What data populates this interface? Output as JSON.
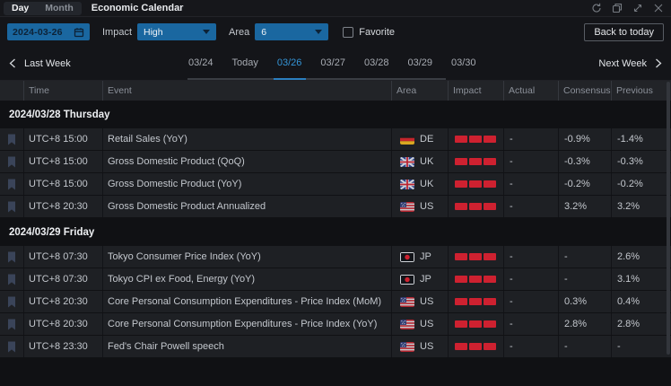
{
  "window": {
    "tabs": [
      {
        "label": "Day",
        "active": true
      },
      {
        "label": "Month",
        "active": false
      }
    ],
    "title": "Economic Calendar",
    "controls": [
      "refresh",
      "popout",
      "expand",
      "close"
    ]
  },
  "filters": {
    "date_value": "2024-03-26",
    "impact_label": "Impact",
    "impact_value": "High",
    "area_label": "Area",
    "area_value": "6",
    "favorite_label": "Favorite",
    "favorite_checked": false,
    "back_to_today_label": "Back to today"
  },
  "week_nav": {
    "prev_label": "Last Week",
    "next_label": "Next Week",
    "days": [
      {
        "label": "03/24",
        "active": false
      },
      {
        "label": "Today",
        "active": false
      },
      {
        "label": "03/26",
        "active": true
      },
      {
        "label": "03/27",
        "active": false
      },
      {
        "label": "03/28",
        "active": false
      },
      {
        "label": "03/29",
        "active": false
      },
      {
        "label": "03/30",
        "active": false
      }
    ]
  },
  "table": {
    "columns": [
      "Time",
      "Event",
      "Area",
      "Impact",
      "Actual",
      "Consensus",
      "Previous"
    ],
    "sections": [
      {
        "date": "2024/03/28 Thursday",
        "rows": [
          {
            "time": "UTC+8 15:00",
            "event": "Retail Sales (YoY)",
            "area": "DE",
            "impact_level": 3,
            "actual": "-",
            "consensus": "-0.9%",
            "previous": "-1.4%"
          },
          {
            "time": "UTC+8 15:00",
            "event": "Gross Domestic Product (QoQ)",
            "area": "UK",
            "impact_level": 3,
            "actual": "-",
            "consensus": "-0.3%",
            "previous": "-0.3%"
          },
          {
            "time": "UTC+8 15:00",
            "event": "Gross Domestic Product (YoY)",
            "area": "UK",
            "impact_level": 3,
            "actual": "-",
            "consensus": "-0.2%",
            "previous": "-0.2%"
          },
          {
            "time": "UTC+8 20:30",
            "event": "Gross Domestic Product Annualized",
            "area": "US",
            "impact_level": 3,
            "actual": "-",
            "consensus": "3.2%",
            "previous": "3.2%"
          }
        ]
      },
      {
        "date": "2024/03/29 Friday",
        "rows": [
          {
            "time": "UTC+8 07:30",
            "event": "Tokyo Consumer Price Index (YoY)",
            "area": "JP",
            "impact_level": 3,
            "actual": "-",
            "consensus": "-",
            "previous": "2.6%"
          },
          {
            "time": "UTC+8 07:30",
            "event": "Tokyo CPI ex Food, Energy (YoY)",
            "area": "JP",
            "impact_level": 3,
            "actual": "-",
            "consensus": "-",
            "previous": "3.1%"
          },
          {
            "time": "UTC+8 20:30",
            "event": "Core Personal Consumption Expenditures - Price Index (MoM)",
            "area": "US",
            "impact_level": 3,
            "actual": "-",
            "consensus": "0.3%",
            "previous": "0.4%"
          },
          {
            "time": "UTC+8 20:30",
            "event": "Core Personal Consumption Expenditures - Price Index (YoY)",
            "area": "US",
            "impact_level": 3,
            "actual": "-",
            "consensus": "2.8%",
            "previous": "2.8%"
          },
          {
            "time": "UTC+8 23:30",
            "event": "Fed's Chair Powell speech",
            "area": "US",
            "impact_level": 3,
            "actual": "-",
            "consensus": "-",
            "previous": "-"
          }
        ]
      }
    ]
  },
  "colors": {
    "accent_blue": "#1a67a0",
    "active_day_blue": "#3494d6",
    "impact_red": "#ce2130",
    "row_bg": "#1e2024",
    "page_bg": "#101114"
  }
}
